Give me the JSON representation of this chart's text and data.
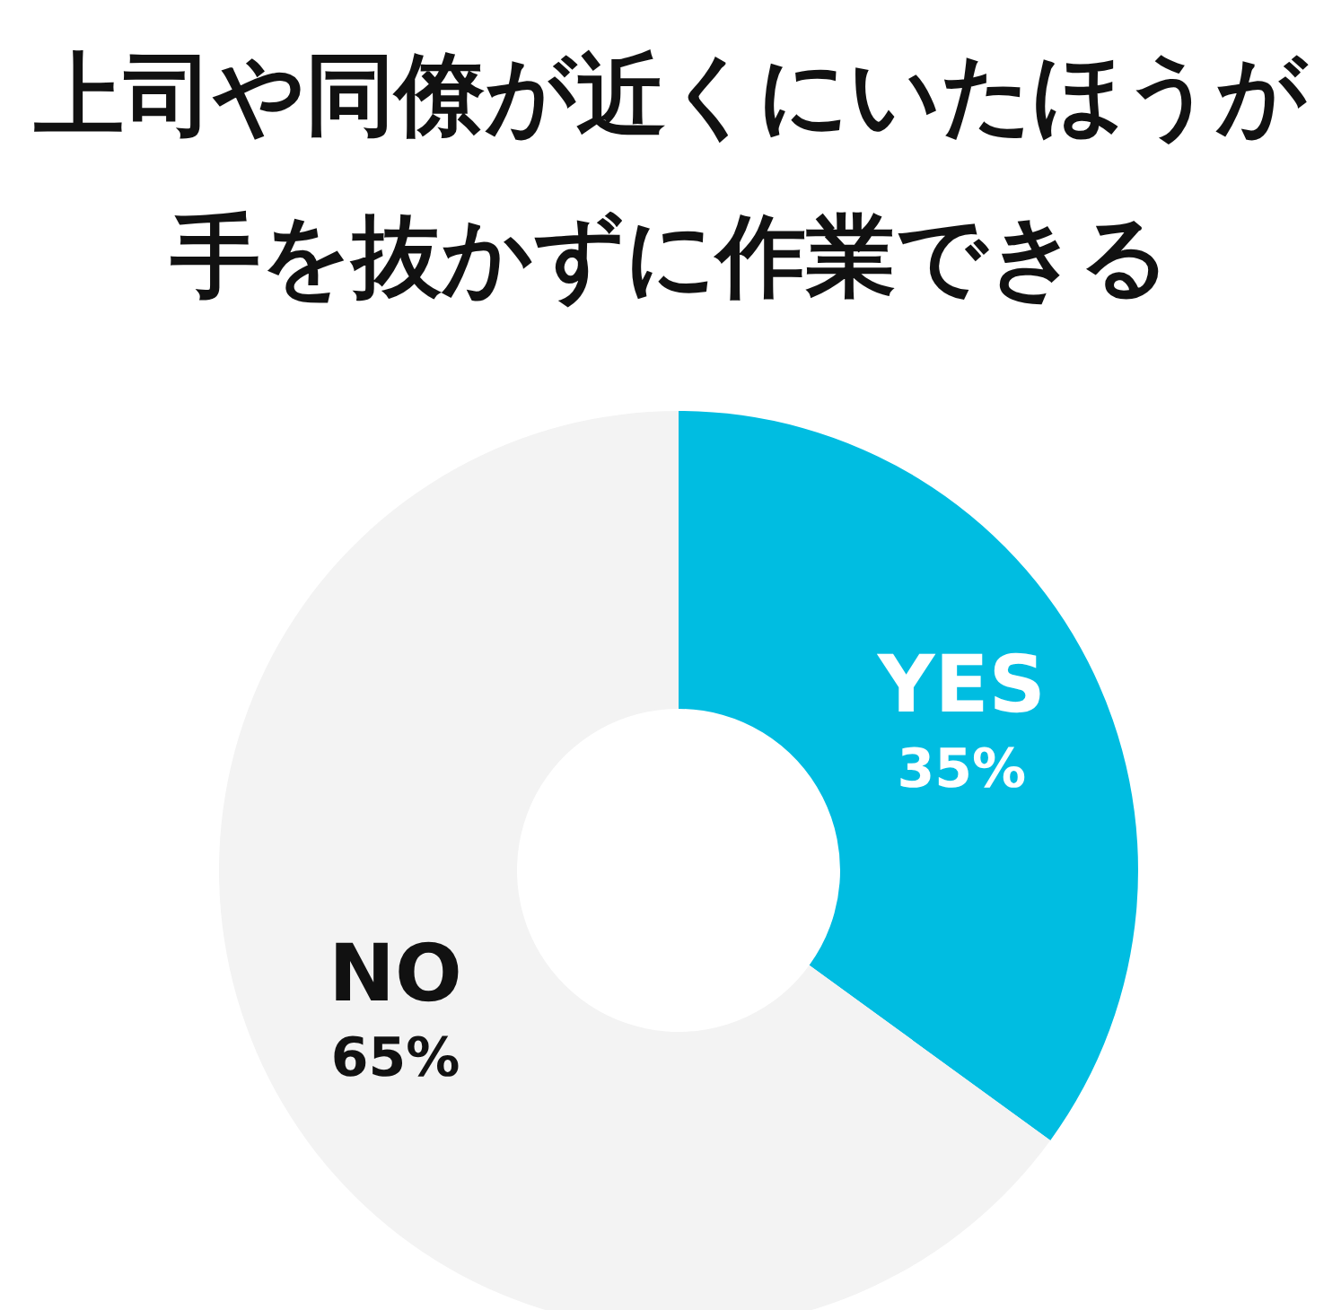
{
  "chart_data": {
    "type": "donut",
    "title": "上司や同僚が近くにいたほうが手を抜かずに作業できる",
    "categories": [
      "YES",
      "NO"
    ],
    "values": [
      35,
      65
    ],
    "colors": [
      "#00bde1",
      "#f3f3f3"
    ],
    "value_labels": [
      "35%",
      "65%"
    ]
  }
}
